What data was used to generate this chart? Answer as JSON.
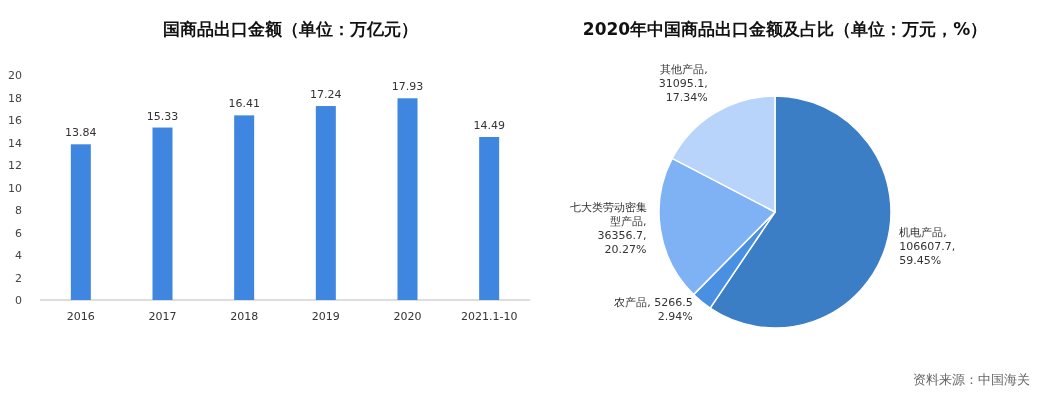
{
  "chart_data": [
    {
      "type": "bar",
      "title": "国商品出口金额（单位：万亿元）",
      "categories": [
        "2016",
        "2017",
        "2018",
        "2019",
        "2020",
        "2021.1-10"
      ],
      "values": [
        13.84,
        15.33,
        16.41,
        17.24,
        17.93,
        14.49
      ],
      "color": "#3f86e0",
      "ylim": [
        0,
        20
      ],
      "yticks": [
        0,
        2,
        4,
        6,
        8,
        10,
        12,
        14,
        16,
        18,
        20
      ],
      "data_labels": true,
      "grid": false
    },
    {
      "type": "pie",
      "title": "2020年中国商品出口金额及占比（单位：万元，%）",
      "categories": [
        "机电产品",
        "农产品",
        "七大类劳动密集型产品",
        "其他产品"
      ],
      "values": [
        106607.7,
        5266.5,
        36356.7,
        31095.1
      ],
      "value_labels": [
        ",\n106607.7,\n59.45%",
        ", 5266.5\n2.94%",
        ",\n36356.7,\n20.27%",
        ",\n31095.1,\n17.34%"
      ],
      "colors": [
        "#3b7ec6",
        "#4a90e2",
        "#7eb2f5",
        "#b9d4fa"
      ],
      "annotations": [
        "资料来源：中国海关"
      ]
    }
  ]
}
